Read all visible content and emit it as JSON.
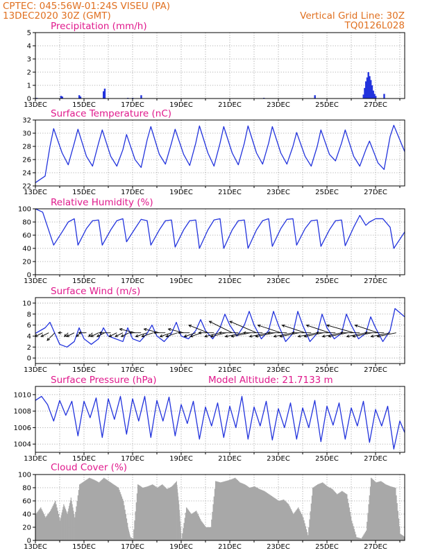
{
  "header": {
    "source_line": "CPTEC:   045:56W-01:24S   VISEU (PA)",
    "date_line": "13DEC2020 30Z (GMT)",
    "grid_note": "Vertical Grid Line: 30Z",
    "model_code": "TQ0126L028"
  },
  "colors": {
    "header": "#e07020",
    "title": "#e0198c",
    "series": "#2233dd",
    "cloud": "#a8a8a8",
    "wind_arrow": "#000000"
  },
  "x_axis": {
    "start_day": 13,
    "end_day": 28.2,
    "labels": [
      "13DEC",
      "15DEC",
      "17DEC",
      "19DEC",
      "21DEC",
      "23DEC",
      "25DEC",
      "27DEC"
    ],
    "label_days": [
      13,
      15,
      17,
      19,
      21,
      23,
      25,
      27
    ],
    "grid_days": [
      14,
      15,
      16,
      17,
      18,
      19,
      20,
      21,
      22,
      23,
      24,
      25,
      26,
      27,
      28
    ]
  },
  "chart_data": [
    {
      "id": "precip",
      "type": "bar",
      "title": "Precipitation (mm/h)",
      "ylim": [
        0,
        5
      ],
      "yticks": [
        0,
        1,
        2,
        3,
        4,
        5
      ],
      "grid": true,
      "x": [
        13.05,
        14.05,
        14.1,
        14.8,
        14.85,
        15.8,
        15.85,
        16.8,
        17.0,
        17.35,
        22.4,
        24.5,
        26.5,
        26.55,
        26.6,
        26.65,
        26.7,
        26.75,
        26.8,
        26.85,
        26.9,
        26.95,
        27.0,
        27.35
      ],
      "values": [
        0.05,
        0.2,
        0.15,
        0.25,
        0.15,
        0.55,
        0.75,
        0.05,
        0.05,
        0.25,
        0.05,
        0.25,
        0.3,
        0.8,
        1.3,
        1.6,
        2.0,
        1.7,
        1.4,
        1.0,
        0.6,
        0.35,
        0.2,
        0.35
      ]
    },
    {
      "id": "temp",
      "type": "line",
      "title": "Surface Temperature (nC)",
      "ylim": [
        22,
        32
      ],
      "yticks": [
        22,
        24,
        26,
        28,
        30,
        32
      ],
      "grid": true,
      "x": [
        13.0,
        13.4,
        13.6,
        13.75,
        14.1,
        14.35,
        14.6,
        14.75,
        15.1,
        15.35,
        15.6,
        15.75,
        16.1,
        16.35,
        16.6,
        16.75,
        17.1,
        17.35,
        17.6,
        17.75,
        18.1,
        18.35,
        18.6,
        18.75,
        19.1,
        19.35,
        19.6,
        19.75,
        20.1,
        20.35,
        20.6,
        20.75,
        21.1,
        21.35,
        21.6,
        21.75,
        22.1,
        22.35,
        22.6,
        22.75,
        23.1,
        23.35,
        23.6,
        23.75,
        24.1,
        24.35,
        24.6,
        24.75,
        25.1,
        25.35,
        25.6,
        25.75,
        26.1,
        26.35,
        26.6,
        26.75,
        27.1,
        27.35,
        27.6,
        27.75,
        28.2
      ],
      "values": [
        22.5,
        23.5,
        28.0,
        30.7,
        27.0,
        25.2,
        28.5,
        30.6,
        26.5,
        25.0,
        28.5,
        30.5,
        26.5,
        25.0,
        27.5,
        29.8,
        26.0,
        24.8,
        29.0,
        31.0,
        26.8,
        25.3,
        28.5,
        30.6,
        26.8,
        25.1,
        28.5,
        31.1,
        27.0,
        25.0,
        28.5,
        31.0,
        27.0,
        25.2,
        28.5,
        31.1,
        27.0,
        25.3,
        28.5,
        31.0,
        27.0,
        25.3,
        28.0,
        30.1,
        26.5,
        25.0,
        28.0,
        30.5,
        26.8,
        25.8,
        28.5,
        30.5,
        26.5,
        25.0,
        27.5,
        28.8,
        25.5,
        24.5,
        29.5,
        31.2,
        27.2
      ]
    },
    {
      "id": "rh",
      "type": "line",
      "title": "Relative Humidity (%)",
      "ylim": [
        0,
        100
      ],
      "yticks": [
        0,
        20,
        40,
        60,
        80,
        100
      ],
      "grid": true,
      "x": [
        13.0,
        13.3,
        13.75,
        14.1,
        14.35,
        14.6,
        14.75,
        15.1,
        15.35,
        15.6,
        15.75,
        16.1,
        16.35,
        16.6,
        16.75,
        17.1,
        17.35,
        17.6,
        17.75,
        18.1,
        18.35,
        18.6,
        18.75,
        19.1,
        19.35,
        19.6,
        19.75,
        20.1,
        20.35,
        20.6,
        20.75,
        21.1,
        21.35,
        21.6,
        21.75,
        22.1,
        22.35,
        22.6,
        22.75,
        23.1,
        23.35,
        23.6,
        23.75,
        24.1,
        24.35,
        24.6,
        24.75,
        25.1,
        25.35,
        25.6,
        25.75,
        26.1,
        26.35,
        26.6,
        26.75,
        27.0,
        27.3,
        27.6,
        27.75,
        28.2
      ],
      "values": [
        100,
        95,
        45,
        65,
        80,
        85,
        45,
        70,
        82,
        83,
        45,
        68,
        82,
        85,
        50,
        70,
        84,
        82,
        45,
        68,
        82,
        83,
        42,
        68,
        82,
        83,
        40,
        68,
        83,
        85,
        40,
        68,
        82,
        83,
        40,
        68,
        82,
        85,
        43,
        70,
        84,
        85,
        45,
        70,
        82,
        83,
        43,
        68,
        82,
        83,
        44,
        72,
        90,
        75,
        80,
        85,
        85,
        72,
        40,
        65
      ]
    },
    {
      "id": "wind",
      "type": "line",
      "title": "Surface Wind (m/s)",
      "ylim": [
        -1,
        11
      ],
      "yticks": [
        0,
        2,
        4,
        6,
        8,
        10
      ],
      "grid": true,
      "x": [
        13.0,
        13.4,
        13.6,
        13.85,
        14.0,
        14.3,
        14.6,
        14.8,
        15.0,
        15.3,
        15.6,
        15.8,
        16.0,
        16.3,
        16.6,
        16.8,
        17.0,
        17.3,
        17.6,
        17.8,
        18.0,
        18.3,
        18.6,
        18.8,
        19.0,
        19.3,
        19.6,
        19.8,
        20.0,
        20.3,
        20.6,
        20.8,
        21.0,
        21.3,
        21.6,
        21.8,
        22.0,
        22.3,
        22.6,
        22.8,
        23.0,
        23.3,
        23.6,
        23.8,
        24.0,
        24.3,
        24.6,
        24.8,
        25.0,
        25.3,
        25.6,
        25.8,
        26.0,
        26.3,
        26.6,
        26.8,
        27.0,
        27.3,
        27.6,
        27.8,
        28.2
      ],
      "values": [
        4.5,
        5.5,
        6.5,
        4.0,
        2.5,
        2.0,
        3.0,
        5.5,
        3.5,
        2.5,
        3.5,
        5.5,
        4.0,
        3.5,
        3.0,
        5.5,
        3.5,
        3.0,
        4.5,
        6.0,
        4.0,
        3.0,
        4.5,
        6.5,
        4.0,
        3.5,
        5.0,
        7.0,
        5.0,
        3.5,
        5.5,
        8.0,
        6.0,
        4.0,
        6.0,
        8.5,
        6.0,
        3.5,
        5.0,
        8.5,
        6.0,
        3.0,
        4.5,
        8.5,
        6.0,
        3.0,
        4.5,
        8.0,
        5.5,
        3.5,
        4.5,
        8.0,
        6.0,
        3.5,
        4.5,
        7.5,
        5.5,
        3.0,
        5.0,
        9.0,
        7.5
      ],
      "arrows_x": [
        13.0,
        13.3,
        13.55,
        13.8,
        14.1,
        14.35,
        14.6,
        14.85,
        15.1,
        15.35,
        15.6,
        15.85,
        16.1,
        16.35,
        16.6,
        16.85,
        17.1,
        17.35,
        17.6,
        17.85,
        18.1,
        18.35,
        18.6,
        18.85,
        19.1,
        19.35,
        19.6,
        19.85,
        20.1,
        20.35,
        20.6,
        20.85,
        21.1,
        21.35,
        21.6,
        21.85,
        22.1,
        22.35,
        22.6,
        22.85,
        23.1,
        23.35,
        23.6,
        23.85,
        24.1,
        24.35,
        24.6,
        24.85,
        25.1,
        25.35,
        25.6,
        25.85,
        26.1,
        26.35,
        26.6,
        26.85,
        27.1,
        27.35,
        27.6,
        27.85
      ],
      "arrows_u": [
        -3,
        -2,
        -2,
        -2,
        -1,
        -1,
        -2,
        -1,
        -2,
        -1,
        -2,
        -2,
        -3,
        -2,
        -2,
        -2,
        -4,
        -3,
        -3,
        -3,
        -4,
        -3,
        -3,
        -3,
        -4,
        -3,
        -3,
        -3,
        -5,
        -4,
        -4,
        -4,
        -6,
        -5,
        -5,
        -5,
        -7,
        -5,
        -5,
        -5,
        -6,
        -5,
        -5,
        -5,
        -6,
        -5,
        -5,
        -5,
        -6,
        -5,
        -5,
        -5,
        -7,
        -5,
        -5,
        -5,
        -6,
        -5,
        -5,
        -5
      ],
      "arrows_v": [
        -1,
        -1,
        -1,
        -2,
        0,
        -1,
        -1,
        -1,
        0,
        -1,
        -1,
        -1,
        0,
        -1,
        -1,
        -1,
        1,
        0,
        -1,
        -1,
        1,
        0,
        -1,
        -1,
        1,
        0,
        -1,
        -1,
        2,
        0,
        -1,
        -1,
        3,
        0,
        -1,
        -1,
        3,
        0,
        -1,
        -1,
        2,
        0,
        -1,
        -1,
        2,
        0,
        -1,
        -1,
        2,
        0,
        -1,
        -1,
        2,
        0,
        -1,
        -1,
        2,
        0,
        -1,
        -1
      ]
    },
    {
      "id": "pres",
      "type": "line",
      "title": "Surface Pressure (hPa)",
      "annotation": "Model Altitude: 21.7133 m",
      "ylim": [
        1003,
        1011
      ],
      "yticks": [
        1004,
        1006,
        1008,
        1010
      ],
      "grid": true,
      "x": [
        13.0,
        13.25,
        13.5,
        13.75,
        14.0,
        14.25,
        14.5,
        14.75,
        15.0,
        15.25,
        15.5,
        15.75,
        16.0,
        16.25,
        16.5,
        16.75,
        17.0,
        17.25,
        17.5,
        17.75,
        18.0,
        18.25,
        18.5,
        18.75,
        19.0,
        19.25,
        19.5,
        19.75,
        20.0,
        20.25,
        20.5,
        20.75,
        21.0,
        21.25,
        21.5,
        21.75,
        22.0,
        22.25,
        22.5,
        22.75,
        23.0,
        23.25,
        23.5,
        23.75,
        24.0,
        24.25,
        24.5,
        24.75,
        25.0,
        25.25,
        25.5,
        25.75,
        26.0,
        26.25,
        26.5,
        26.75,
        27.0,
        27.25,
        27.5,
        27.75,
        28.0,
        28.2
      ],
      "values": [
        1009.3,
        1009.8,
        1008.8,
        1006.8,
        1009.3,
        1007.5,
        1009.2,
        1005.0,
        1009.2,
        1007.2,
        1009.6,
        1004.8,
        1009.5,
        1007.0,
        1009.8,
        1005.2,
        1009.5,
        1006.8,
        1009.8,
        1004.8,
        1009.3,
        1006.8,
        1009.7,
        1005.0,
        1008.8,
        1006.5,
        1009.2,
        1004.6,
        1008.5,
        1006.2,
        1009.0,
        1004.8,
        1008.6,
        1006.0,
        1009.8,
        1004.6,
        1008.5,
        1006.2,
        1009.2,
        1004.5,
        1008.3,
        1006.0,
        1009.0,
        1004.6,
        1008.4,
        1006.0,
        1009.3,
        1004.3,
        1008.6,
        1006.3,
        1009.0,
        1004.6,
        1008.4,
        1006.2,
        1009.2,
        1004.2,
        1008.2,
        1006.2,
        1008.6,
        1003.4,
        1006.8,
        1005.4
      ]
    },
    {
      "id": "cloud",
      "type": "area",
      "title": "Cloud Cover (%)",
      "ylim": [
        0,
        100
      ],
      "yticks": [
        0,
        20,
        40,
        60,
        80,
        100
      ],
      "grid": true,
      "x": [
        13.0,
        13.2,
        13.4,
        13.6,
        13.8,
        14.0,
        14.15,
        14.3,
        14.45,
        14.6,
        14.8,
        15.0,
        15.2,
        15.4,
        15.6,
        15.8,
        16.0,
        16.2,
        16.4,
        16.6,
        16.8,
        16.9,
        17.0,
        17.2,
        17.4,
        17.6,
        17.8,
        18.0,
        18.2,
        18.4,
        18.6,
        18.8,
        18.9,
        19.0,
        19.2,
        19.4,
        19.6,
        19.8,
        20.0,
        20.2,
        20.4,
        20.6,
        20.8,
        21.0,
        21.2,
        21.4,
        21.6,
        21.8,
        22.0,
        22.2,
        22.4,
        22.6,
        22.8,
        23.0,
        23.2,
        23.4,
        23.6,
        23.8,
        24.0,
        24.2,
        24.4,
        24.6,
        24.8,
        25.0,
        25.2,
        25.4,
        25.6,
        25.8,
        26.0,
        26.2,
        26.4,
        26.6,
        26.8,
        27.0,
        27.2,
        27.4,
        27.6,
        27.8,
        28.0,
        28.2
      ],
      "values": [
        40,
        50,
        35,
        45,
        60,
        30,
        55,
        40,
        65,
        35,
        85,
        90,
        95,
        92,
        88,
        95,
        90,
        85,
        80,
        60,
        20,
        5,
        3,
        85,
        80,
        82,
        85,
        80,
        85,
        78,
        82,
        90,
        55,
        3,
        50,
        40,
        45,
        30,
        20,
        20,
        90,
        88,
        90,
        92,
        95,
        88,
        85,
        80,
        82,
        78,
        75,
        70,
        65,
        60,
        62,
        55,
        40,
        50,
        35,
        8,
        80,
        85,
        88,
        82,
        78,
        70,
        75,
        70,
        30,
        5,
        3,
        15,
        95,
        88,
        90,
        85,
        82,
        80,
        10,
        5
      ]
    }
  ]
}
